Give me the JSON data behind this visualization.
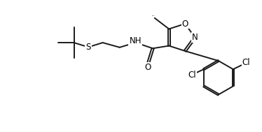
{
  "background_color": "#ffffff",
  "line_color": "#1a1a1a",
  "line_width": 1.4,
  "font_size": 8.5,
  "figsize": [
    3.74,
    1.89
  ],
  "dpi": 100,
  "xlim": [
    0,
    10
  ],
  "ylim": [
    0,
    5.0
  ]
}
